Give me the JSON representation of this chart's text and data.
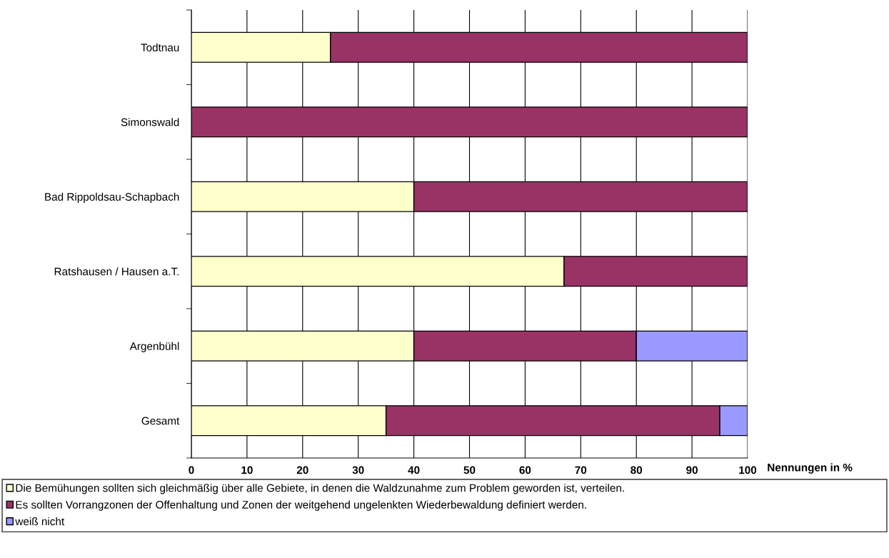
{
  "chart_data": {
    "type": "bar",
    "orientation": "horizontal",
    "stacked": true,
    "xlabel": "Nennungen in %",
    "categories": [
      "Todtnau",
      "Simonswald",
      "Bad Rippoldsau-Schapbach",
      "Ratshausen / Hausen a.T.",
      "Argenbühl",
      "Gesamt"
    ],
    "series": [
      {
        "name": "Die Bemühungen sollten sich gleichmäßig über alle Gebiete, in denen die Waldzunahme zum Problem geworden ist, verteilen.",
        "color": "#ffffcc",
        "values": [
          25,
          null,
          40,
          67,
          40,
          35
        ]
      },
      {
        "name": "Es sollten Vorrangzonen der Offenhaltung und Zonen der weitgehend ungelenkten Wiederbewaldung definiert werden.",
        "color": "#993366",
        "values": [
          75,
          100,
          60,
          33,
          40,
          60
        ]
      },
      {
        "name": "weiß nicht",
        "color": "#9999ff",
        "values": [
          null,
          null,
          null,
          null,
          20,
          5
        ]
      }
    ],
    "xlim": [
      0,
      100
    ],
    "xticks": [
      0,
      10,
      20,
      30,
      40,
      50,
      60,
      70,
      80,
      90,
      100
    ],
    "grid": "x",
    "legend": "bottom"
  }
}
